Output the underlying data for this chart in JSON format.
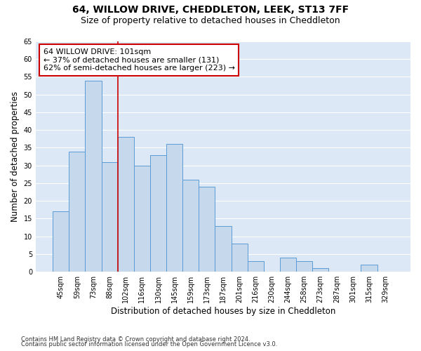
{
  "title": "64, WILLOW DRIVE, CHEDDLETON, LEEK, ST13 7FF",
  "subtitle": "Size of property relative to detached houses in Cheddleton",
  "xlabel": "Distribution of detached houses by size in Cheddleton",
  "ylabel": "Number of detached properties",
  "categories": [
    "45sqm",
    "59sqm",
    "73sqm",
    "88sqm",
    "102sqm",
    "116sqm",
    "130sqm",
    "145sqm",
    "159sqm",
    "173sqm",
    "187sqm",
    "201sqm",
    "216sqm",
    "230sqm",
    "244sqm",
    "258sqm",
    "273sqm",
    "287sqm",
    "301sqm",
    "315sqm",
    "329sqm"
  ],
  "values": [
    17,
    34,
    54,
    31,
    38,
    30,
    33,
    36,
    26,
    24,
    13,
    8,
    3,
    0,
    4,
    3,
    1,
    0,
    0,
    2,
    0
  ],
  "bar_color": "#c5d8ec",
  "bar_edge_color": "#5b9bd5",
  "property_line_color": "#cc0000",
  "annotation_text": "64 WILLOW DRIVE: 101sqm\n← 37% of detached houses are smaller (131)\n62% of semi-detached houses are larger (223) →",
  "annotation_box_color": "white",
  "annotation_box_edge_color": "#cc0000",
  "ylim": [
    0,
    65
  ],
  "yticks": [
    0,
    5,
    10,
    15,
    20,
    25,
    30,
    35,
    40,
    45,
    50,
    55,
    60,
    65
  ],
  "background_color": "#dce8f5",
  "grid_color": "#ffffff",
  "footer_line1": "Contains HM Land Registry data © Crown copyright and database right 2024.",
  "footer_line2": "Contains public sector information licensed under the Open Government Licence v3.0.",
  "title_fontsize": 10,
  "subtitle_fontsize": 9,
  "axis_label_fontsize": 8.5,
  "tick_fontsize": 7,
  "annotation_fontsize": 8,
  "footer_fontsize": 6
}
